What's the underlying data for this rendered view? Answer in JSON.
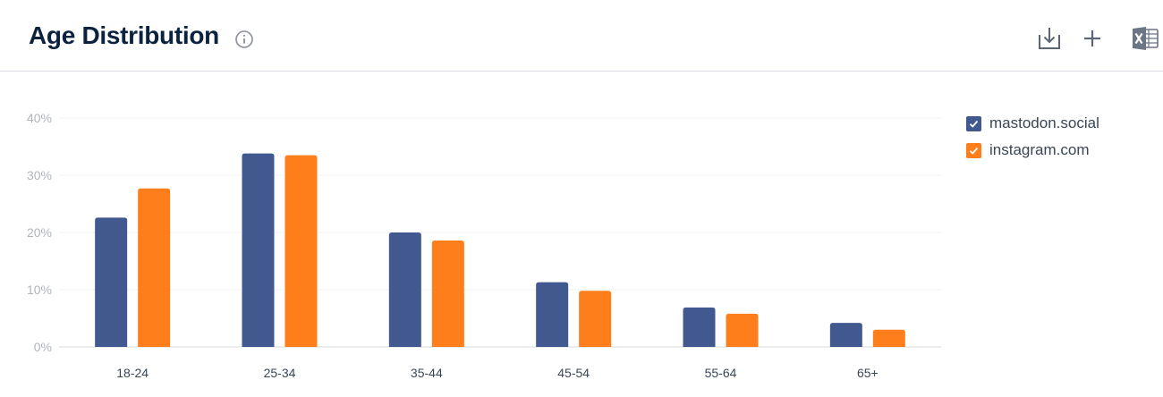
{
  "header": {
    "title": "Age Distribution",
    "icons": {
      "info": "info-icon",
      "download": "download-icon",
      "add": "plus-icon",
      "excel": "excel-icon"
    }
  },
  "colors": {
    "series1": "#41598f",
    "series2": "#fd7e1a",
    "grid": "#eef0f3",
    "axis": "#d6d9de"
  },
  "chart_data": {
    "type": "bar",
    "categories": [
      "18-24",
      "25-34",
      "35-44",
      "45-54",
      "55-64",
      "65+"
    ],
    "series": [
      {
        "name": "mastodon.social",
        "values": [
          22.6,
          33.8,
          20.0,
          11.3,
          6.9,
          4.2
        ]
      },
      {
        "name": "instagram.com",
        "values": [
          27.7,
          33.5,
          18.6,
          9.8,
          5.8,
          3.0
        ]
      }
    ],
    "ylim": [
      0,
      40
    ],
    "yticks": [
      "0%",
      "10%",
      "20%",
      "30%",
      "40%"
    ],
    "grid": true,
    "legend_position": "right"
  }
}
